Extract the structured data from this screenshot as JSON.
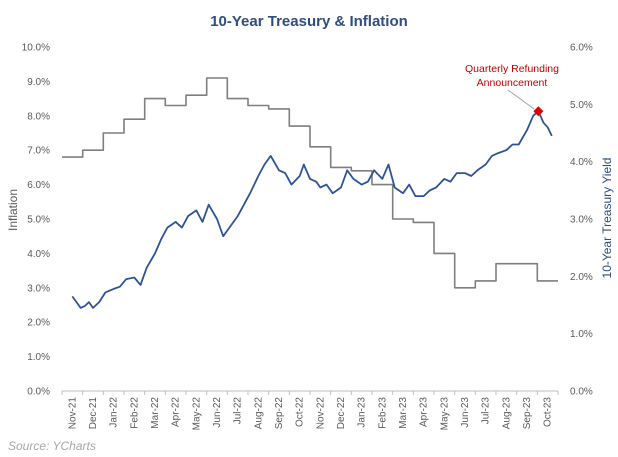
{
  "chart_data": {
    "type": "line",
    "title": "10-Year Treasury & Inflation",
    "ylabel_left": "Inflation",
    "ylabel_right": "10-Year Treasury Yield",
    "source": "Source: YCharts",
    "x_ticks": [
      "Nov-21",
      "Dec-21",
      "Jan-22",
      "Feb-22",
      "Mar-22",
      "Apr-22",
      "May-22",
      "Jun-22",
      "Jul-22",
      "Aug-22",
      "Sep-22",
      "Oct-22",
      "Nov-22",
      "Dec-22",
      "Jan-23",
      "Feb-23",
      "Mar-23",
      "Apr-23",
      "May-23",
      "Jun-23",
      "Jul-23",
      "Aug-23",
      "Sep-23",
      "Oct-23"
    ],
    "y_left_ticks": [
      "0.0%",
      "1.0%",
      "2.0%",
      "3.0%",
      "4.0%",
      "5.0%",
      "6.0%",
      "7.0%",
      "8.0%",
      "9.0%",
      "10.0%"
    ],
    "y_right_ticks": [
      "0.0%",
      "1.0%",
      "2.0%",
      "3.0%",
      "4.0%",
      "5.0%",
      "6.0%"
    ],
    "ylim_left": [
      0,
      10
    ],
    "ylim_right": [
      0,
      6
    ],
    "grid": false,
    "annotation": {
      "line1": "Quarterly Refunding",
      "line2": "Announcement",
      "x": 22.55,
      "y": 4.88,
      "color": "#e00000"
    },
    "series": [
      {
        "name": "Inflation",
        "axis": "left",
        "color": "#7f7f7f",
        "step": true,
        "x": [
          0,
          1,
          2,
          3,
          4,
          5,
          6,
          7,
          8,
          9,
          10,
          11,
          12,
          13,
          14,
          15,
          16,
          17,
          18,
          19,
          20,
          21,
          22,
          23
        ],
        "values": [
          6.8,
          7.0,
          7.5,
          7.9,
          8.5,
          8.3,
          8.6,
          9.1,
          8.5,
          8.3,
          8.2,
          7.7,
          7.1,
          6.5,
          6.4,
          6.0,
          5.0,
          4.9,
          4.0,
          3.0,
          3.2,
          3.7,
          3.7,
          3.2
        ]
      },
      {
        "name": "10-Year Treasury Yield",
        "axis": "right",
        "color": "#2e5395",
        "x": [
          0,
          0.2,
          0.4,
          0.6,
          0.8,
          1.0,
          1.3,
          1.6,
          2.0,
          2.3,
          2.6,
          3.0,
          3.3,
          3.6,
          4.0,
          4.3,
          4.6,
          5.0,
          5.3,
          5.6,
          6.0,
          6.3,
          6.6,
          7.0,
          7.3,
          7.6,
          8.0,
          8.3,
          8.6,
          9.0,
          9.3,
          9.6,
          10.0,
          10.3,
          10.6,
          11.0,
          11.2,
          11.5,
          11.8,
          12.0,
          12.3,
          12.6,
          13.0,
          13.3,
          13.6,
          14.0,
          14.3,
          14.6,
          15.0,
          15.3,
          15.6,
          16.0,
          16.3,
          16.6,
          17.0,
          17.3,
          17.6,
          18.0,
          18.3,
          18.6,
          19.0,
          19.3,
          19.6,
          20.0,
          20.3,
          20.6,
          21.0,
          21.3,
          21.6,
          22.0,
          22.3,
          22.55,
          22.8,
          23.0,
          23.2
        ],
        "values": [
          1.65,
          1.55,
          1.45,
          1.48,
          1.55,
          1.45,
          1.55,
          1.72,
          1.78,
          1.82,
          1.95,
          1.98,
          1.85,
          2.15,
          2.4,
          2.65,
          2.85,
          2.95,
          2.85,
          3.05,
          3.15,
          2.95,
          3.25,
          3.0,
          2.7,
          2.85,
          3.05,
          3.25,
          3.45,
          3.75,
          3.95,
          4.1,
          3.85,
          3.8,
          3.6,
          3.75,
          3.95,
          3.7,
          3.65,
          3.55,
          3.6,
          3.45,
          3.55,
          3.85,
          3.7,
          3.6,
          3.65,
          3.85,
          3.7,
          3.95,
          3.55,
          3.45,
          3.6,
          3.4,
          3.4,
          3.5,
          3.55,
          3.7,
          3.65,
          3.8,
          3.8,
          3.75,
          3.85,
          3.95,
          4.1,
          4.15,
          4.2,
          4.3,
          4.3,
          4.55,
          4.8,
          4.88,
          4.68,
          4.6,
          4.45
        ]
      }
    ]
  }
}
